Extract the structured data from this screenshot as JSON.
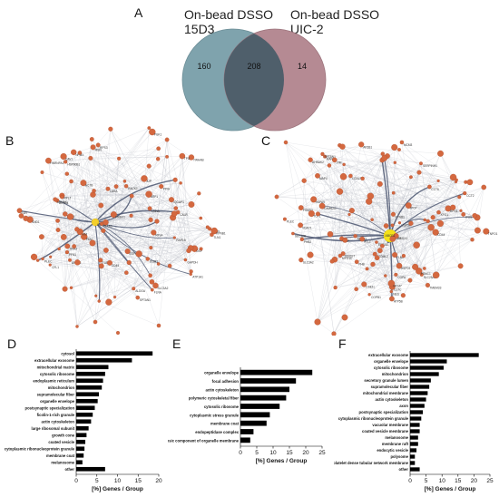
{
  "panels": {
    "A": "A",
    "B": "B",
    "C": "C",
    "D": "D",
    "E": "E",
    "F": "F"
  },
  "venn": {
    "left_label_line1": "On-bead DSSO",
    "left_label_line2": "15D3",
    "right_label_line1": "On-bead DSSO",
    "right_label_line2": "UIC-2",
    "left_only": "160",
    "overlap": "208",
    "right_only": "14",
    "left_color": "#7fa3ad",
    "right_color": "#b58a93",
    "overlap_color": "#4f5f6b"
  },
  "network_B": {
    "node_labels": [
      "YWHAB",
      "RAP1B",
      "ARF1",
      "ANXA2",
      "ACTB",
      "HSPA8",
      "PKM",
      "ENO1",
      "GAPDH",
      "TUBB",
      "MYH9",
      "FLNA",
      "VIM",
      "RPL7",
      "RPS3",
      "RPL4",
      "PDIA3",
      "CALR",
      "HSP90B1",
      "PPIA",
      "PFN1",
      "CFL1",
      "TPM3",
      "EEF1A1",
      "LDHA",
      "ALDOA",
      "PGK1",
      "TPI1",
      "MSN",
      "EZR",
      "CD44",
      "ITGB1",
      "CAV1",
      "SPTAN1",
      "IQGAP1",
      "ACTN4",
      "TLN1",
      "PLEC",
      "AHNAK",
      "DSP",
      "JUP",
      "LMNA",
      "NPM1",
      "HNRNPA1",
      "SLC3A2",
      "ATP1A1",
      "KPNB1",
      "SND1",
      "RACK1",
      "PRDX1"
    ]
  },
  "network_C": {
    "node_labels": [
      "ABCB1",
      "KPNB1",
      "IPO5",
      "IPO7",
      "XPO1",
      "RAN",
      "NUP93",
      "CSE1L",
      "TNPO1",
      "AP2B1",
      "CLTC",
      "HSPA9",
      "ATP5B",
      "SLC25A5",
      "VDAC1",
      "PHB",
      "PHB2",
      "TMEM33",
      "STOML2",
      "DDOST",
      "RPN1",
      "SEC22B",
      "COPB1",
      "COPA",
      "PSMC1",
      "PSMD2",
      "MCM7",
      "MCM3",
      "SLC3A2",
      "ATL2",
      "MAP4",
      "EEF1A1",
      "CCT6",
      "CCT2",
      "TCP1",
      "HSPD1",
      "PRDX1",
      "MYO1C",
      "SPTBN1",
      "LGALS1",
      "FLNA",
      "PLEC",
      "VIM",
      "DSP",
      "USP54",
      "CAMK2G",
      "NES",
      "SERPINH1",
      "AHNAK2",
      "CD44"
    ],
    "highlight_label": "ABCB1"
  },
  "bars_D": {
    "categories": [
      "cytosol",
      "extracellular exosome",
      "mitochondrial matrix",
      "cytosolic ribosome",
      "endoplasmic reticulum",
      "mitochondrion",
      "supramolecular fiber",
      "organelle envelope",
      "postsynaptic specialization",
      "ficolin-1-rich granule",
      "actin cytoskeleton",
      "large ribosomal subunit",
      "growth cone",
      "coated vesicle",
      "cytoplasmic ribonucleoprotein granule",
      "membrane coat",
      "melanosome",
      "other"
    ],
    "values": [
      18.5,
      13.5,
      7.8,
      7.0,
      6.5,
      6.2,
      5.5,
      5.2,
      4.5,
      4.0,
      3.6,
      3.0,
      2.5,
      2.2,
      2.0,
      1.8,
      1.5,
      7.0
    ],
    "xlabel": "[%] Genes / Group",
    "ticks": [
      0,
      5,
      10,
      15,
      20
    ],
    "xmax": 20
  },
  "bars_E": {
    "categories": [
      "organelle envelope",
      "focal adhesion",
      "actin cytoskeleton",
      "polymeric cytoskeletal fiber",
      "cytosolic ribosome",
      "cytoplasmic stress granule",
      "membrane coat",
      "endopeptidase complex",
      "extrinsic component of organelle membrane"
    ],
    "values": [
      22,
      17,
      15,
      14,
      12,
      9,
      8,
      4,
      3
    ],
    "xlabel": "[%] Genes / Group",
    "ticks": [
      0,
      5,
      10,
      15,
      20,
      25
    ],
    "xmax": 25
  },
  "bars_F": {
    "categories": [
      "extracellular exosome",
      "organelle envelope",
      "cytosolic ribosome",
      "mitochondrion",
      "secretory granule lumen",
      "supramolecular fiber",
      "mitochondrial membrane",
      "actin cytoskeleton",
      "axon",
      "postsynaptic specialization",
      "cytoplasmic ribonucleoprotein granule",
      "vacuolar membrane",
      "coated vesicle membrane",
      "melanosome",
      "membrane raft",
      "endocytic vesicle",
      "polysome",
      "platelet dense tubular network membrane",
      "other"
    ],
    "values": [
      21.5,
      11.5,
      10.5,
      9.0,
      6.5,
      6.0,
      5.5,
      5.0,
      4.5,
      4.0,
      3.5,
      3.0,
      3.0,
      2.5,
      2.5,
      2.0,
      1.5,
      1.5,
      3.0
    ],
    "xlabel": "[%] Genes / Group",
    "ticks": [
      0,
      5,
      10,
      15,
      20,
      25
    ],
    "xmax": 25
  }
}
